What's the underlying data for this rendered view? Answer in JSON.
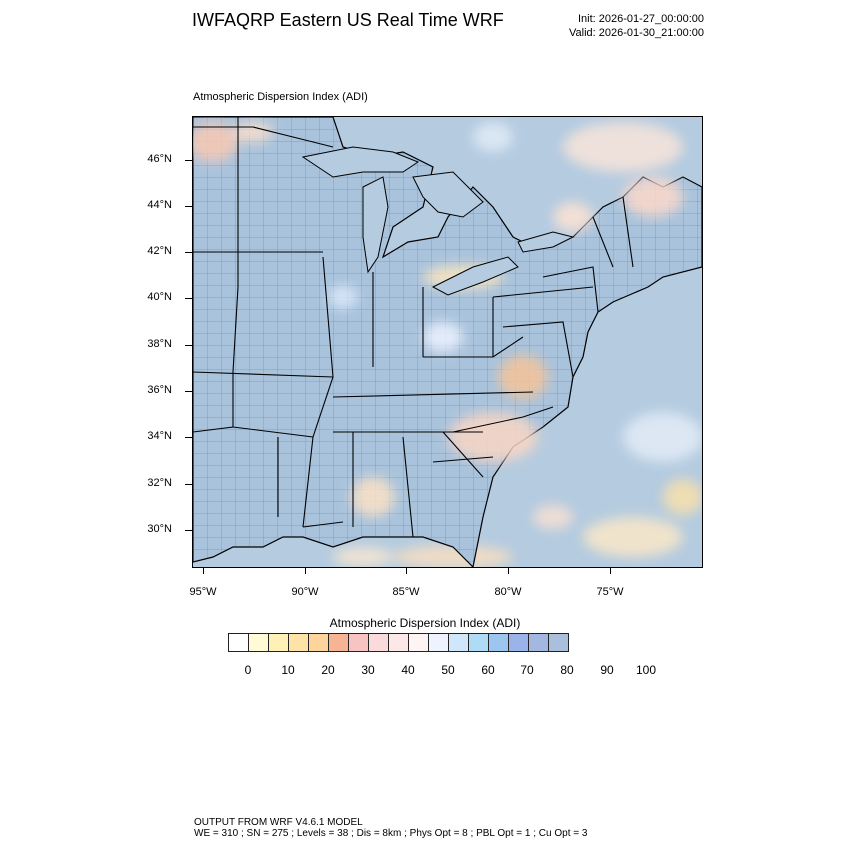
{
  "header": {
    "title": "IWFAQRP Eastern US Real Time WRF",
    "init": "Init: 2026-01-27_00:00:00",
    "valid": "Valid: 2026-01-30_21:00:00"
  },
  "map": {
    "label": "Atmospheric Dispersion Index   (ADI)",
    "lat_ticks": [
      "46°N",
      "44°N",
      "42°N",
      "40°N",
      "38°N",
      "36°N",
      "34°N",
      "32°N",
      "30°N"
    ],
    "lon_ticks": [
      "95°W",
      "90°W",
      "85°W",
      "80°W",
      "75°W"
    ],
    "colors": {
      "ocean": "#b4cbe0",
      "land_base": "#a9c3dc",
      "boundary": "#000000",
      "county": "#333333"
    }
  },
  "colorbar": {
    "title": "Atmospheric Dispersion Index  (ADI)",
    "labels": [
      "0",
      "10",
      "20",
      "30",
      "40",
      "50",
      "60",
      "70",
      "80",
      "90",
      "100"
    ],
    "colors": [
      "#ffffff",
      "#fffbd6",
      "#fff0b8",
      "#ffe2a8",
      "#fdd49b",
      "#f6b495",
      "#f7c3c3",
      "#fadada",
      "#fde8e8",
      "#fff4f4",
      "#eef3ff",
      "#cfe6fb",
      "#aedcf7",
      "#9cc6f0",
      "#9ab4ea",
      "#a3b7e0",
      "#a9bfdb"
    ]
  },
  "footer": {
    "line1": "OUTPUT FROM WRF V4.6.1 MODEL",
    "line2": "WE = 310 ; SN = 275 ; Levels = 38 ; Dis = 8km ; Phys Opt = 8 ; PBL Opt = 1 ; Cu Opt = 3"
  }
}
